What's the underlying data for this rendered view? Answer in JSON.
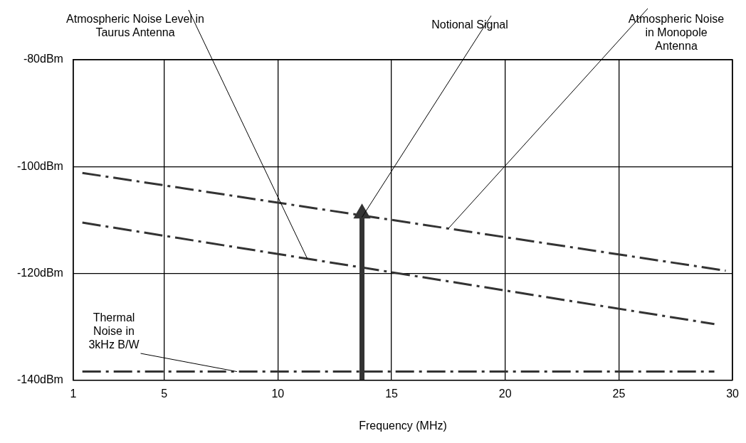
{
  "chart_data": {
    "type": "line",
    "xlabel": "Frequency (MHz)",
    "xlim": [
      1,
      30
    ],
    "xticks": [
      1,
      5,
      10,
      15,
      20,
      25,
      30
    ],
    "ylim": [
      -140,
      -80
    ],
    "yticks": [
      {
        "value": -140,
        "label": "-140dBm"
      },
      {
        "value": -120,
        "label": "-120dBm"
      },
      {
        "value": -100,
        "label": "-100dBm"
      },
      {
        "value": -80,
        "label": "-80dBm"
      }
    ],
    "grid": true,
    "legend": false,
    "series": [
      {
        "color": "#333333",
        "x": [
          1.4,
          29.7
        ],
        "values": [
          -101.2,
          -119.5
        ],
        "line_style": "dashed",
        "marker": "none"
      },
      {
        "color": "#333333",
        "x": [
          1.4,
          29.2
        ],
        "values": [
          -110.5,
          -129.5
        ],
        "line_style": "dashed",
        "marker": "none"
      },
      {
        "color": "#333333",
        "x": [
          1.4,
          29.2
        ],
        "values": [
          -138.4,
          -138.4
        ],
        "line_style": "dashed",
        "marker": "none"
      },
      {
        "color": "#333333",
        "x": [
          13.7,
          13.7
        ],
        "values": [
          -140,
          -108.8
        ],
        "line_style": "solid",
        "marker": "triangle"
      }
    ],
    "annotations": [
      {
        "text": "Atmospheric Noise Level in\nTaurus Antenna",
        "x": 11.3,
        "y": -117.3
      },
      {
        "text": "Notional Signal",
        "x": 13.7,
        "y": -109.5
      },
      {
        "text": "Atmospheric Noise\nin Monopole\nAntenna",
        "x": 17.5,
        "y": -111.6
      },
      {
        "text": "Thermal\nNoise in\n3kHz B/W",
        "x": 8.2,
        "y": -138.4
      }
    ]
  }
}
